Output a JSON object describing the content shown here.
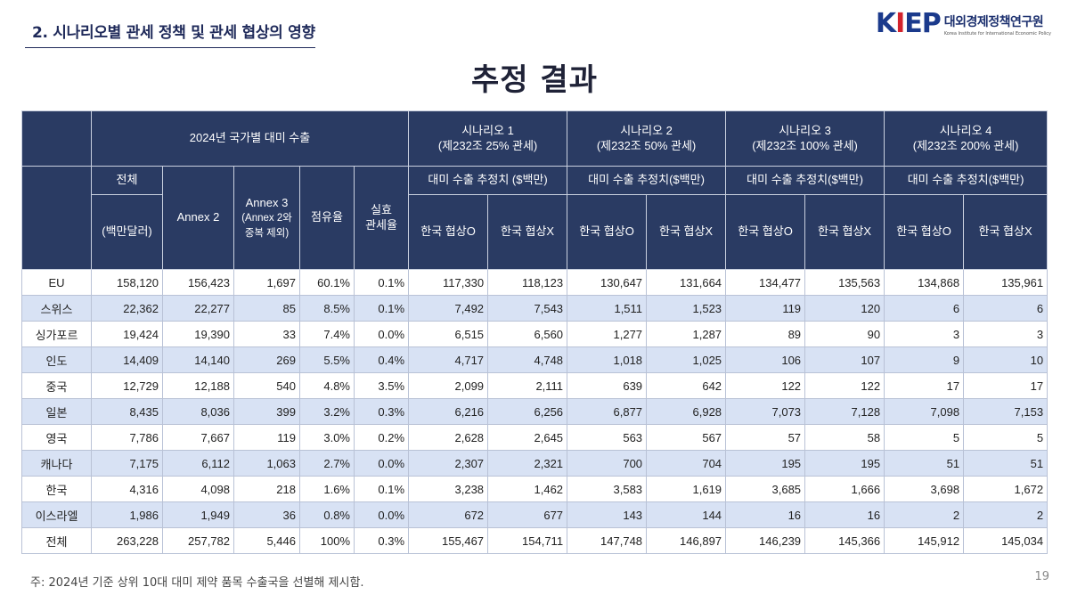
{
  "header": {
    "section_title": "2. 시나리오별 관세 정책 및 관세 협상의 영향",
    "logo_mark": "KIEP",
    "logo_korean": "대외경제정책연구원",
    "logo_english": "Korea Institute for International Economic Policy"
  },
  "page_heading": "추정 결과",
  "table": {
    "group_export": "2024년 국가별 대미 수출",
    "scenarios": [
      {
        "name": "시나리오 1",
        "desc": "(제232조 25% 관세)",
        "sub": "대미 수출 추정치 ($백만)"
      },
      {
        "name": "시나리오 2",
        "desc": "(제232조 50% 관세)",
        "sub": "대미 수출 추정치($백만)"
      },
      {
        "name": "시나리오 3",
        "desc": "(제232조 100% 관세)",
        "sub": "대미 수출 추정치($백만)"
      },
      {
        "name": "시나리오 4",
        "desc": "(제232조 200% 관세)",
        "sub": "대미 수출 추정치($백만)"
      }
    ],
    "col_total_top": "전체",
    "col_total_unit": "(백만달러)",
    "col_annex2": "Annex 2",
    "col_annex3_line1": "Annex 3",
    "col_annex3_line2": "(Annex 2와",
    "col_annex3_line3": "중복 제외)",
    "col_share": "점유율",
    "col_rate_line1": "실효",
    "col_rate_line2": "관세율",
    "neg_o": "한국 협상O",
    "neg_x": "한국 협상X",
    "rows": [
      [
        "EU",
        "158,120",
        "156,423",
        "1,697",
        "60.1%",
        "0.1%",
        "117,330",
        "118,123",
        "130,647",
        "131,664",
        "134,477",
        "135,563",
        "134,868",
        "135,961"
      ],
      [
        "스위스",
        "22,362",
        "22,277",
        "85",
        "8.5%",
        "0.1%",
        "7,492",
        "7,543",
        "1,511",
        "1,523",
        "119",
        "120",
        "6",
        "6"
      ],
      [
        "싱가포르",
        "19,424",
        "19,390",
        "33",
        "7.4%",
        "0.0%",
        "6,515",
        "6,560",
        "1,277",
        "1,287",
        "89",
        "90",
        "3",
        "3"
      ],
      [
        "인도",
        "14,409",
        "14,140",
        "269",
        "5.5%",
        "0.4%",
        "4,717",
        "4,748",
        "1,018",
        "1,025",
        "106",
        "107",
        "9",
        "10"
      ],
      [
        "중국",
        "12,729",
        "12,188",
        "540",
        "4.8%",
        "3.5%",
        "2,099",
        "2,111",
        "639",
        "642",
        "122",
        "122",
        "17",
        "17"
      ],
      [
        "일본",
        "8,435",
        "8,036",
        "399",
        "3.2%",
        "0.3%",
        "6,216",
        "6,256",
        "6,877",
        "6,928",
        "7,073",
        "7,128",
        "7,098",
        "7,153"
      ],
      [
        "영국",
        "7,786",
        "7,667",
        "119",
        "3.0%",
        "0.2%",
        "2,628",
        "2,645",
        "563",
        "567",
        "57",
        "58",
        "5",
        "5"
      ],
      [
        "캐나다",
        "7,175",
        "6,112",
        "1,063",
        "2.7%",
        "0.0%",
        "2,307",
        "2,321",
        "700",
        "704",
        "195",
        "195",
        "51",
        "51"
      ],
      [
        "한국",
        "4,316",
        "4,098",
        "218",
        "1.6%",
        "0.1%",
        "3,238",
        "1,462",
        "3,583",
        "1,619",
        "3,685",
        "1,666",
        "3,698",
        "1,672"
      ],
      [
        "이스라엘",
        "1,986",
        "1,949",
        "36",
        "0.8%",
        "0.0%",
        "672",
        "677",
        "143",
        "144",
        "16",
        "16",
        "2",
        "2"
      ],
      [
        "전체",
        "263,228",
        "257,782",
        "5,446",
        "100%",
        "0.3%",
        "155,467",
        "154,711",
        "147,748",
        "146,897",
        "146,239",
        "145,366",
        "145,912",
        "145,034"
      ]
    ]
  },
  "footnote": "주: 2024년 기준 상위 10대 대미 제약 품목 수출국을 선별해 제시함.",
  "page_number": "19"
}
